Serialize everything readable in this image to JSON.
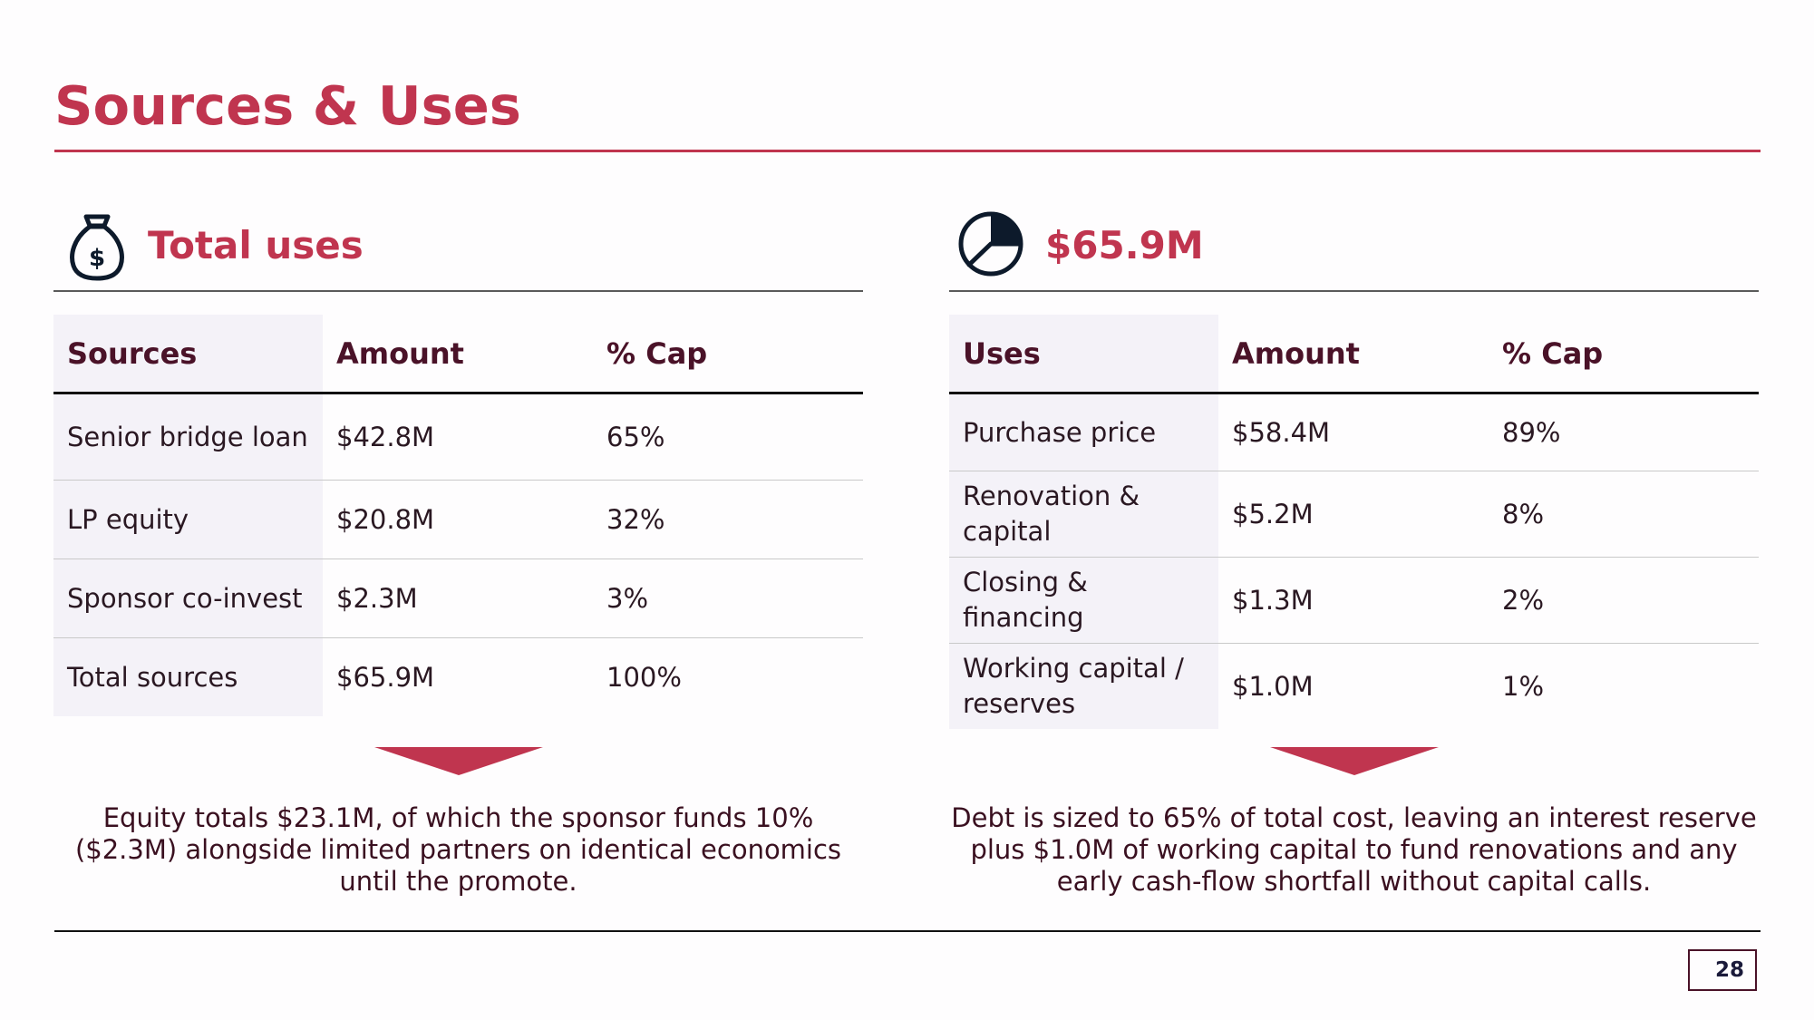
{
  "slide": {
    "title": "Sources & Uses",
    "page_number": "28"
  },
  "colors": {
    "accent": "#c0354f",
    "dark_text": "#3a1020",
    "first_col_bg": "#f4f2f8"
  },
  "left_panel": {
    "icon": "money-bag-icon",
    "heading": "Total uses",
    "columns": [
      "Sources",
      "Amount",
      "% Cap"
    ],
    "rows": [
      [
        "Senior bridge loan",
        "$42.8M",
        "65%"
      ],
      [
        "LP equity",
        "$20.8M",
        "32%"
      ],
      [
        "Sponsor co-invest",
        "$2.3M",
        "3%"
      ],
      [
        "Total sources",
        "$65.9M",
        "100%"
      ]
    ],
    "note": "Equity totals $23.1M, of which the sponsor funds 10% ($2.3M) alongside limited partners on identical economics until the promote."
  },
  "right_panel": {
    "icon": "pie-chart-icon",
    "heading": "$65.9M",
    "columns": [
      "Uses",
      "Amount",
      "% Cap"
    ],
    "rows": [
      [
        "Purchase price",
        "$58.4M",
        "89%"
      ],
      [
        "Renovation & capital",
        "$5.2M",
        "8%"
      ],
      [
        "Closing & financing",
        "$1.3M",
        "2%"
      ],
      [
        "Working capital / reserves",
        "$1.0M",
        "1%"
      ]
    ],
    "note": "Debt is sized to 65% of total cost, leaving an interest reserve plus $1.0M of working capital to fund renovations and any early cash-flow shortfall without capital calls."
  }
}
